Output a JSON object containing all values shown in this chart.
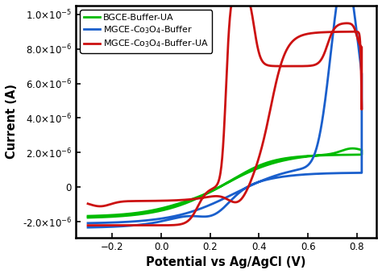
{
  "xlabel": "Potential vs Ag/AgCl (V)",
  "ylabel": "Current (A)",
  "xlim": [
    -0.35,
    0.88
  ],
  "ylim": [
    -2.9e-06,
    1.05e-05
  ],
  "yticks": [
    -2e-06,
    0.0,
    2e-06,
    4e-06,
    6e-06,
    8e-06,
    1e-05
  ],
  "xticks": [
    -0.2,
    0.0,
    0.2,
    0.4,
    0.6,
    0.8
  ],
  "colors": {
    "green": "#00bb00",
    "blue": "#1a5fcc",
    "red": "#cc1111"
  },
  "legend": [
    "BGCE-Buffer-UA",
    "MGCE-Co$_3$O$_4$-Buffer",
    "MGCE-Co$_3$O$_4$-Buffer-UA"
  ],
  "background_color": "#ffffff",
  "linewidth": 2.0
}
